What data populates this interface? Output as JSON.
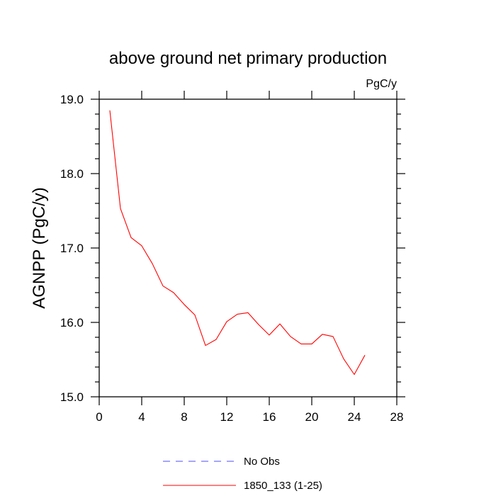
{
  "chart_data": {
    "type": "line",
    "title": "above ground net primary production",
    "units_label": "PgC/y",
    "ylabel": "AGNPP  (PgC/y)",
    "xlabel": "",
    "xlim": [
      0,
      28
    ],
    "ylim": [
      15.0,
      19.0
    ],
    "x_ticks": [
      0,
      4,
      8,
      12,
      16,
      20,
      24,
      28
    ],
    "y_ticks": [
      15.0,
      16.0,
      17.0,
      18.0,
      19.0
    ],
    "y_tick_labels": [
      "15.0",
      "16.0",
      "17.0",
      "18.0",
      "19.0"
    ],
    "grid": false,
    "legend_placement": "bottom",
    "series": [
      {
        "name": "No Obs",
        "color": "#4d4dff",
        "dash": "dashed",
        "x": [],
        "y": []
      },
      {
        "name": "1850_133 (1-25)",
        "color": "#ff0000",
        "dash": "solid",
        "x": [
          1,
          2,
          3,
          4,
          5,
          6,
          7,
          8,
          9,
          10,
          11,
          12,
          13,
          14,
          15,
          16,
          17,
          18,
          19,
          20,
          21,
          22,
          23,
          24,
          25
        ],
        "y": [
          18.85,
          17.53,
          17.14,
          17.03,
          16.79,
          16.49,
          16.4,
          16.24,
          16.1,
          15.69,
          15.77,
          16.01,
          16.11,
          16.13,
          15.97,
          15.83,
          15.98,
          15.81,
          15.71,
          15.71,
          15.84,
          15.81,
          15.51,
          15.3,
          15.56
        ]
      }
    ]
  }
}
